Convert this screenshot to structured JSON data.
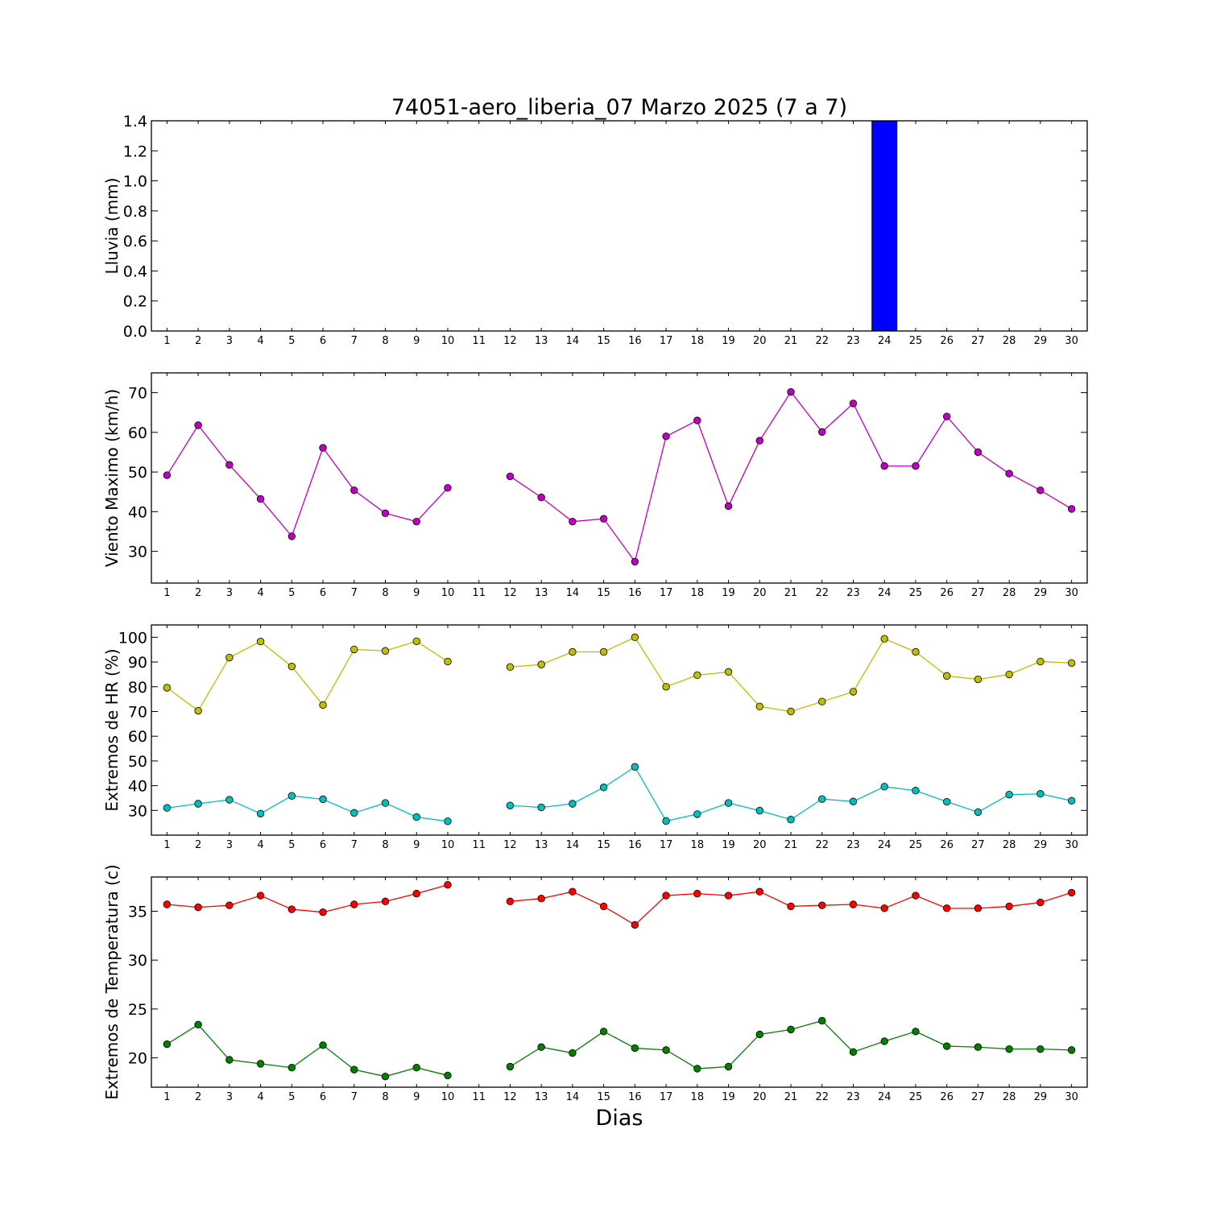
{
  "figure": {
    "title": "74051-aero_liberia_07 Marzo 2025  (7 a 7)",
    "xlabel": "Dias"
  },
  "chart_data": [
    {
      "type": "bar",
      "ylabel": "Lluvia (mm)",
      "xlim": [
        0.5,
        30.5
      ],
      "ylim": [
        0,
        1.4
      ],
      "yticks": [
        0.0,
        0.2,
        0.4,
        0.6,
        0.8,
        1.0,
        1.2,
        1.4
      ],
      "ytick_labels": [
        "0.0",
        "0.2",
        "0.4",
        "0.6",
        "0.8",
        "1.0",
        "1.2",
        "1.4"
      ],
      "grid": false,
      "x": [
        1,
        2,
        3,
        4,
        5,
        6,
        7,
        8,
        9,
        10,
        11,
        12,
        13,
        14,
        15,
        16,
        17,
        18,
        19,
        20,
        21,
        22,
        23,
        24,
        25,
        26,
        27,
        28,
        29,
        30
      ],
      "xtick_labels": [
        "1",
        "2",
        "3",
        "4",
        "5",
        "6",
        "7",
        "8",
        "9",
        "10",
        "11",
        "12",
        "13",
        "14",
        "15",
        "16",
        "17",
        "18",
        "19",
        "20",
        "21",
        "22",
        "23",
        "24",
        "25",
        "26",
        "27",
        "28",
        "29",
        "30"
      ],
      "series": [
        {
          "color": "#0000ff",
          "values": [
            0,
            0,
            0,
            0,
            0,
            0,
            0,
            0,
            0,
            0,
            null,
            0,
            0,
            0,
            0,
            0,
            0,
            0,
            0,
            0,
            0,
            0,
            0,
            1.4,
            0,
            0,
            0,
            0,
            0,
            0
          ]
        }
      ]
    },
    {
      "type": "line",
      "ylabel": "Viento Maximo (km/h)",
      "xlim": [
        0.5,
        30.5
      ],
      "ylim": [
        22,
        75
      ],
      "yticks": [
        30,
        40,
        50,
        60,
        70
      ],
      "ytick_labels": [
        "30",
        "40",
        "50",
        "60",
        "70"
      ],
      "grid": false,
      "x": [
        1,
        2,
        3,
        4,
        5,
        6,
        7,
        8,
        9,
        10,
        11,
        12,
        13,
        14,
        15,
        16,
        17,
        18,
        19,
        20,
        21,
        22,
        23,
        24,
        25,
        26,
        27,
        28,
        29,
        30
      ],
      "xtick_labels": [
        "1",
        "2",
        "3",
        "4",
        "5",
        "6",
        "7",
        "8",
        "9",
        "10",
        "11",
        "12",
        "13",
        "14",
        "15",
        "16",
        "17",
        "18",
        "19",
        "20",
        "21",
        "22",
        "23",
        "24",
        "25",
        "26",
        "27",
        "28",
        "29",
        "30"
      ],
      "series": [
        {
          "color": "#bf00bf",
          "values": [
            49.2,
            61.8,
            51.8,
            43.2,
            33.8,
            56.1,
            45.4,
            39.6,
            37.5,
            46.0,
            null,
            48.9,
            43.6,
            37.5,
            38.2,
            27.4,
            59.0,
            63.0,
            41.4,
            57.9,
            70.2,
            60.1,
            67.3,
            51.5,
            51.5,
            64.0,
            55.0,
            49.6,
            45.4,
            40.7
          ]
        }
      ]
    },
    {
      "type": "line",
      "ylabel": "Extremos de HR (%)",
      "xlim": [
        0.5,
        30.5
      ],
      "ylim": [
        20,
        105
      ],
      "yticks": [
        30,
        40,
        50,
        60,
        70,
        80,
        90,
        100
      ],
      "ytick_labels": [
        "30",
        "40",
        "50",
        "60",
        "70",
        "80",
        "90",
        "100"
      ],
      "grid": false,
      "x": [
        1,
        2,
        3,
        4,
        5,
        6,
        7,
        8,
        9,
        10,
        11,
        12,
        13,
        14,
        15,
        16,
        17,
        18,
        19,
        20,
        21,
        22,
        23,
        24,
        25,
        26,
        27,
        28,
        29,
        30
      ],
      "xtick_labels": [
        "1",
        "2",
        "3",
        "4",
        "5",
        "6",
        "7",
        "8",
        "9",
        "10",
        "11",
        "12",
        "13",
        "14",
        "15",
        "16",
        "17",
        "18",
        "19",
        "20",
        "21",
        "22",
        "23",
        "24",
        "25",
        "26",
        "27",
        "28",
        "29",
        "30"
      ],
      "series": [
        {
          "color": "#bfbf00",
          "values": [
            79.6,
            70.3,
            91.8,
            98.3,
            88.2,
            72.6,
            95.1,
            94.5,
            98.4,
            90.2,
            null,
            88.0,
            89.0,
            94.1,
            94.1,
            100.0,
            80.0,
            84.7,
            86.0,
            72.0,
            70.0,
            74.0,
            78.0,
            99.4,
            94.1,
            84.4,
            83.0,
            85.0,
            90.2,
            89.6
          ]
        },
        {
          "color": "#00bfbf",
          "values": [
            31.0,
            32.7,
            34.3,
            28.7,
            35.9,
            34.5,
            29.0,
            33.0,
            27.3,
            25.6,
            null,
            32.0,
            31.2,
            32.7,
            39.3,
            47.6,
            25.7,
            28.5,
            33.0,
            29.9,
            26.3,
            34.6,
            33.6,
            39.6,
            38.0,
            33.5,
            29.3,
            36.4,
            36.7,
            33.9
          ]
        }
      ]
    },
    {
      "type": "line",
      "ylabel": "Extremos de Temperatura (c)",
      "xlim": [
        0.5,
        30.5
      ],
      "ylim": [
        17,
        38.5
      ],
      "yticks": [
        20,
        25,
        30,
        35
      ],
      "ytick_labels": [
        "20",
        "25",
        "30",
        "35"
      ],
      "grid": false,
      "x": [
        1,
        2,
        3,
        4,
        5,
        6,
        7,
        8,
        9,
        10,
        11,
        12,
        13,
        14,
        15,
        16,
        17,
        18,
        19,
        20,
        21,
        22,
        23,
        24,
        25,
        26,
        27,
        28,
        29,
        30
      ],
      "xtick_labels": [
        "1",
        "2",
        "3",
        "4",
        "5",
        "6",
        "7",
        "8",
        "9",
        "10",
        "11",
        "12",
        "13",
        "14",
        "15",
        "16",
        "17",
        "18",
        "19",
        "20",
        "21",
        "22",
        "23",
        "24",
        "25",
        "26",
        "27",
        "28",
        "29",
        "30"
      ],
      "series": [
        {
          "color": "#ff0000",
          "values": [
            35.7,
            35.4,
            35.6,
            36.6,
            35.2,
            34.9,
            35.7,
            36.0,
            36.8,
            37.7,
            null,
            36.0,
            36.3,
            37.0,
            35.5,
            33.6,
            36.6,
            36.8,
            36.6,
            37.0,
            35.5,
            35.6,
            35.7,
            35.3,
            36.6,
            35.3,
            35.3,
            35.5,
            35.9,
            36.9
          ]
        },
        {
          "color": "#008000",
          "values": [
            21.4,
            23.4,
            19.8,
            19.4,
            19.0,
            21.3,
            18.8,
            18.1,
            19.0,
            18.2,
            null,
            19.1,
            21.1,
            20.5,
            22.7,
            21.0,
            20.8,
            18.9,
            19.1,
            22.4,
            22.9,
            23.8,
            20.6,
            21.7,
            22.7,
            21.2,
            21.1,
            20.9,
            20.9,
            20.8
          ]
        }
      ]
    }
  ]
}
